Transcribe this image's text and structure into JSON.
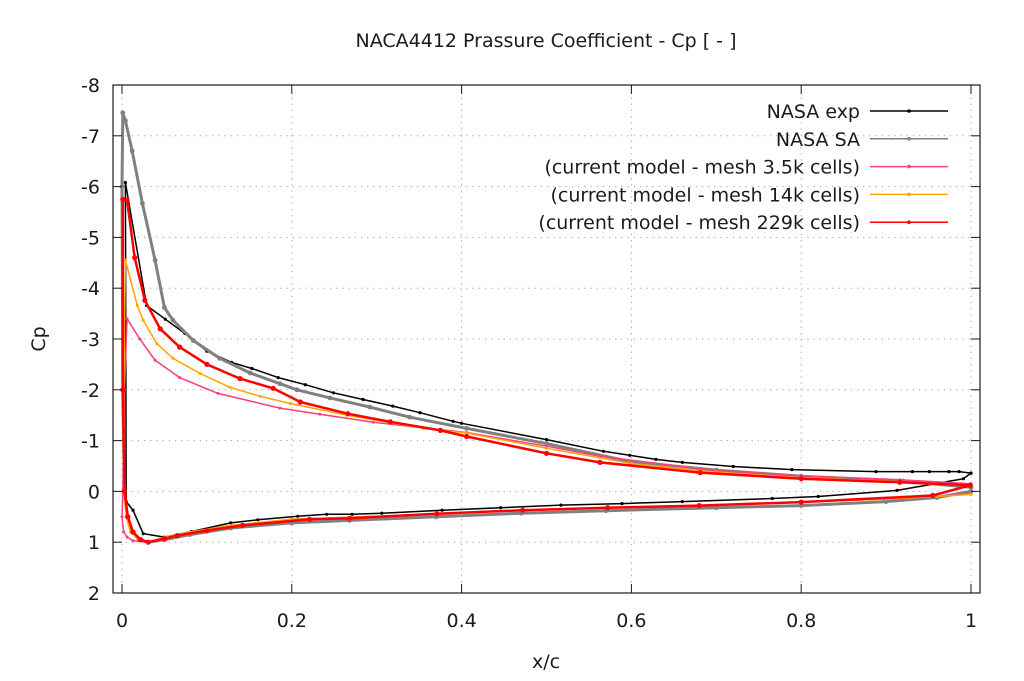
{
  "chart_data": {
    "type": "line",
    "title": "NACA4412 Prassure Coefficient - Cp [ - ]",
    "xlabel": "x/c",
    "ylabel": "Cp",
    "xlim": [
      0,
      1
    ],
    "ylim": [
      2,
      -8
    ],
    "y_inverted": true,
    "grid": true,
    "legend_position": "top-right",
    "x_ticks": [
      "0",
      "0.2",
      "0.4",
      "0.6",
      "0.8",
      "1"
    ],
    "x_tick_values": [
      0,
      0.2,
      0.4,
      0.6,
      0.8,
      1
    ],
    "y_ticks": [
      "-8",
      "-7",
      "-6",
      "-5",
      "-4",
      "-3",
      "-2",
      "-1",
      "0",
      "1",
      "2"
    ],
    "y_tick_values": [
      -8,
      -7,
      -6,
      -5,
      -4,
      -3,
      -2,
      -1,
      0,
      1,
      2
    ],
    "series": [
      {
        "name": "NASA exp",
        "color": "#000000",
        "marker_every": 1,
        "x": [
          1.0,
          0.986,
          0.974,
          0.951,
          0.931,
          0.888,
          0.789,
          0.72,
          0.66,
          0.629,
          0.598,
          0.567,
          0.5,
          0.4,
          0.39,
          0.351,
          0.319,
          0.284,
          0.249,
          0.216,
          0.184,
          0.153,
          0.129,
          0.1,
          0.074,
          0.051,
          0.029,
          0.004,
          0.005,
          0.013,
          0.025,
          0.05,
          0.082,
          0.128,
          0.16,
          0.207,
          0.241,
          0.271,
          0.306,
          0.377,
          0.446,
          0.517,
          0.589,
          0.66,
          0.766,
          0.82,
          0.913,
          0.991,
          1.0
        ],
        "y": [
          -0.36,
          -0.39,
          -0.39,
          -0.39,
          -0.39,
          -0.39,
          -0.43,
          -0.49,
          -0.57,
          -0.63,
          -0.71,
          -0.79,
          -1.02,
          -1.34,
          -1.38,
          -1.55,
          -1.68,
          -1.81,
          -1.94,
          -2.1,
          -2.24,
          -2.42,
          -2.54,
          -2.76,
          -3.11,
          -3.39,
          -3.66,
          -6.08,
          0.2,
          0.37,
          0.83,
          0.9,
          0.79,
          0.62,
          0.56,
          0.49,
          0.45,
          0.45,
          0.43,
          0.37,
          0.32,
          0.27,
          0.24,
          0.2,
          0.14,
          0.1,
          -0.02,
          -0.25,
          -0.36
        ]
      },
      {
        "name": "NASA SA",
        "color": "#808080",
        "x": [
          1.0,
          0.92,
          0.8,
          0.7,
          0.6,
          0.5,
          0.406,
          0.339,
          0.292,
          0.245,
          0.206,
          0.186,
          0.151,
          0.115,
          0.084,
          0.06,
          0.05,
          0.039,
          0.024,
          0.012,
          0.004,
          0.001,
          0.0,
          0.001,
          0.003,
          0.006,
          0.012,
          0.02,
          0.031,
          0.05,
          0.08,
          0.128,
          0.2,
          0.268,
          0.37,
          0.47,
          0.57,
          0.7,
          0.8,
          0.9,
          0.96,
          1.0
        ],
        "y": [
          -0.08,
          -0.2,
          -0.3,
          -0.42,
          -0.58,
          -0.94,
          -1.24,
          -1.46,
          -1.66,
          -1.84,
          -2.0,
          -2.12,
          -2.33,
          -2.62,
          -2.97,
          -3.37,
          -3.62,
          -4.55,
          -5.67,
          -6.7,
          -7.3,
          -7.45,
          -6.0,
          -2.0,
          0.0,
          0.5,
          0.8,
          0.95,
          1.0,
          0.95,
          0.85,
          0.72,
          0.62,
          0.57,
          0.5,
          0.43,
          0.38,
          0.32,
          0.28,
          0.2,
          0.12,
          0.0
        ]
      },
      {
        "name": "(current model - mesh 3.5k cells)",
        "color": "#ff3d7f",
        "x": [
          1.0,
          0.916,
          0.8,
          0.7,
          0.563,
          0.5,
          0.406,
          0.296,
          0.233,
          0.186,
          0.113,
          0.068,
          0.039,
          0.021,
          0.006,
          0.003,
          0.001,
          0.0,
          0.002,
          0.006,
          0.013,
          0.03,
          0.05,
          0.08,
          0.128,
          0.2,
          0.27,
          0.37,
          0.47,
          0.57,
          0.7,
          0.8,
          0.9,
          0.96,
          1.0
        ],
        "y": [
          -0.15,
          -0.23,
          -0.31,
          -0.41,
          -0.69,
          -0.89,
          -1.16,
          -1.36,
          -1.52,
          -1.64,
          -1.93,
          -2.24,
          -2.58,
          -3.0,
          -3.4,
          -2.0,
          0.0,
          0.5,
          0.8,
          0.9,
          0.97,
          1.0,
          0.9,
          0.8,
          0.67,
          0.55,
          0.51,
          0.44,
          0.37,
          0.32,
          0.27,
          0.21,
          0.15,
          0.1,
          0.05
        ]
      },
      {
        "name": "(current model - mesh 14k cells)",
        "color": "#ffa500",
        "x": [
          1.0,
          0.916,
          0.8,
          0.7,
          0.6,
          0.5,
          0.406,
          0.355,
          0.265,
          0.198,
          0.163,
          0.127,
          0.092,
          0.06,
          0.041,
          0.025,
          0.018,
          0.004,
          0.002,
          0.002,
          0.005,
          0.01,
          0.02,
          0.031,
          0.05,
          0.08,
          0.128,
          0.2,
          0.27,
          0.37,
          0.47,
          0.57,
          0.7,
          0.8,
          0.9,
          0.96,
          1.0
        ],
        "y": [
          -0.1,
          -0.19,
          -0.27,
          -0.38,
          -0.55,
          -0.85,
          -1.15,
          -1.24,
          -1.5,
          -1.73,
          -1.87,
          -2.05,
          -2.32,
          -2.62,
          -2.91,
          -3.37,
          -3.66,
          -4.55,
          -2.0,
          0.0,
          0.5,
          0.8,
          0.95,
          1.0,
          0.9,
          0.8,
          0.67,
          0.55,
          0.51,
          0.44,
          0.37,
          0.32,
          0.27,
          0.21,
          0.15,
          0.1,
          0.06
        ]
      },
      {
        "name": "(current model - mesh 229k cells)",
        "color": "#ff0000",
        "x": [
          0.999,
          0.916,
          0.8,
          0.681,
          0.563,
          0.5,
          0.406,
          0.375,
          0.316,
          0.266,
          0.21,
          0.178,
          0.139,
          0.1,
          0.068,
          0.045,
          0.027,
          0.015,
          0.006,
          0.001,
          0.001,
          0.003,
          0.007,
          0.013,
          0.022,
          0.031,
          0.05,
          0.065,
          0.1,
          0.142,
          0.221,
          0.268,
          0.371,
          0.472,
          0.572,
          0.68,
          0.8,
          0.955,
          0.999
        ],
        "y": [
          -0.12,
          -0.18,
          -0.25,
          -0.37,
          -0.57,
          -0.75,
          -1.08,
          -1.2,
          -1.37,
          -1.53,
          -1.76,
          -2.03,
          -2.22,
          -2.5,
          -2.84,
          -3.2,
          -3.76,
          -4.6,
          -5.73,
          -5.75,
          -2.0,
          0.0,
          0.5,
          0.8,
          0.95,
          1.0,
          0.93,
          0.87,
          0.77,
          0.67,
          0.55,
          0.53,
          0.44,
          0.37,
          0.32,
          0.28,
          0.21,
          0.08,
          -0.12
        ]
      }
    ]
  }
}
